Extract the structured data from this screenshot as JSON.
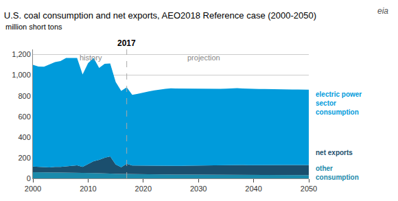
{
  "chart_data": {
    "type": "area",
    "stacked": true,
    "title": "U.S. coal consumption and net exports, AEO2018 Reference case (2000-2050)",
    "subtitle": "million short tons",
    "x": [
      2000,
      2001,
      2002,
      2003,
      2004,
      2005,
      2006,
      2007,
      2008,
      2009,
      2010,
      2011,
      2012,
      2013,
      2014,
      2015,
      2016,
      2017,
      2018,
      2019,
      2020,
      2021,
      2022,
      2023,
      2024,
      2025,
      2026,
      2027,
      2028,
      2029,
      2030,
      2031,
      2032,
      2033,
      2034,
      2035,
      2036,
      2037,
      2038,
      2039,
      2040,
      2041,
      2042,
      2043,
      2044,
      2045,
      2046,
      2047,
      2048,
      2049,
      2050
    ],
    "series": [
      {
        "name": "other\nconsumption",
        "color": "#1B8AAB",
        "values": [
          60,
          58,
          57,
          57,
          57,
          57,
          57,
          57,
          57,
          52,
          52,
          52,
          50,
          50,
          48,
          45,
          43,
          42,
          40,
          39,
          38,
          38,
          37,
          37,
          37,
          37,
          36,
          36,
          36,
          36,
          35,
          35,
          35,
          35,
          35,
          34,
          34,
          34,
          34,
          33,
          33,
          33,
          33,
          32,
          32,
          32,
          32,
          31,
          31,
          31,
          30
        ]
      },
      {
        "name": "net exports",
        "color": "#1B4F6E",
        "values": [
          55,
          55,
          50,
          50,
          55,
          55,
          60,
          65,
          70,
          60,
          90,
          115,
          130,
          150,
          165,
          90,
          65,
          100,
          85,
          85,
          85,
          85,
          85,
          85,
          85,
          85,
          85,
          85,
          87,
          88,
          90,
          90,
          92,
          92,
          93,
          93,
          94,
          95,
          95,
          95,
          96,
          96,
          97,
          97,
          97,
          98,
          98,
          98,
          99,
          99,
          100
        ]
      },
      {
        "name": "electric power\nsector\nconsumption",
        "color": "#009BDB",
        "values": [
          985,
          970,
          975,
          1000,
          1015,
          1025,
          1050,
          1045,
          1040,
          895,
          975,
          1000,
          890,
          910,
          900,
          800,
          740,
          740,
          685,
          695,
          710,
          720,
          730,
          740,
          745,
          750,
          750,
          750,
          748,
          745,
          745,
          745,
          743,
          742,
          740,
          742,
          745,
          745,
          742,
          740,
          738,
          737,
          736,
          735,
          735,
          734,
          733,
          732,
          731,
          730,
          730
        ]
      }
    ],
    "xlim": [
      2000,
      2050
    ],
    "xticks": [
      2000,
      2010,
      2020,
      2030,
      2040,
      2050
    ],
    "ylim": [
      0,
      1250
    ],
    "yticks": [
      0,
      200,
      400,
      600,
      800,
      {
        "value": 1000,
        "label": "1,000"
      },
      {
        "value": 1200,
        "label": "1,200"
      }
    ],
    "grid": true,
    "annotations": [
      {
        "text": "2017",
        "x": 2017,
        "line_style": "dashed"
      },
      {
        "text": "history",
        "x": 2010.5,
        "y": 1170
      },
      {
        "text": "projection",
        "x": 2031,
        "y": 1170
      },
      {
        "text": "eia"
      }
    ]
  }
}
